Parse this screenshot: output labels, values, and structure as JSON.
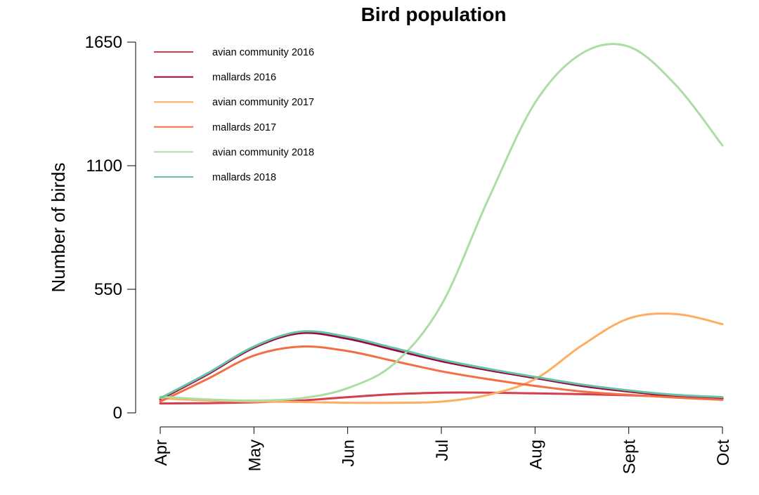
{
  "chart_data": {
    "type": "line",
    "title": "Bird population",
    "xlabel": "",
    "ylabel": "Number of birds",
    "x_ticks": [
      "Apr",
      "May",
      "Jun",
      "Jul",
      "Aug",
      "Sept",
      "Oct"
    ],
    "y_ticks": [
      0,
      550,
      1100,
      1650
    ],
    "ylim": [
      0,
      1650
    ],
    "grid": false,
    "legend_position": "top-left",
    "x": [
      "Apr 1",
      "Apr 15",
      "May 1",
      "May 15",
      "Jun 1",
      "Jun 15",
      "Jul 1",
      "Jul 15",
      "Aug 1",
      "Aug 15",
      "Sept 1",
      "Sept 15",
      "Oct 1"
    ],
    "series": [
      {
        "name": "avian community 2016",
        "color": "#d53e4f",
        "values": [
          42,
          43,
          47,
          55,
          70,
          83,
          90,
          90,
          87,
          83,
          78,
          72,
          64
        ]
      },
      {
        "name": "mallards 2016",
        "color": "#9e0142",
        "values": [
          60,
          170,
          290,
          355,
          330,
          280,
          230,
          190,
          155,
          120,
          95,
          75,
          65
        ]
      },
      {
        "name": "avian community 2017",
        "color": "#fdae61",
        "values": [
          65,
          55,
          50,
          48,
          45,
          45,
          50,
          80,
          150,
          300,
          420,
          440,
          395
        ]
      },
      {
        "name": "mallards 2017",
        "color": "#f46d43",
        "values": [
          50,
          150,
          255,
          295,
          275,
          230,
          185,
          150,
          120,
          95,
          80,
          68,
          58
        ]
      },
      {
        "name": "avian community 2018",
        "color": "#abdda4",
        "values": [
          72,
          60,
          55,
          65,
          110,
          220,
          480,
          950,
          1380,
          1600,
          1630,
          1460,
          1190
        ]
      },
      {
        "name": "mallards 2018",
        "color": "#66c2a5",
        "values": [
          65,
          175,
          295,
          362,
          338,
          288,
          237,
          196,
          160,
          126,
          100,
          80,
          70
        ]
      }
    ]
  }
}
